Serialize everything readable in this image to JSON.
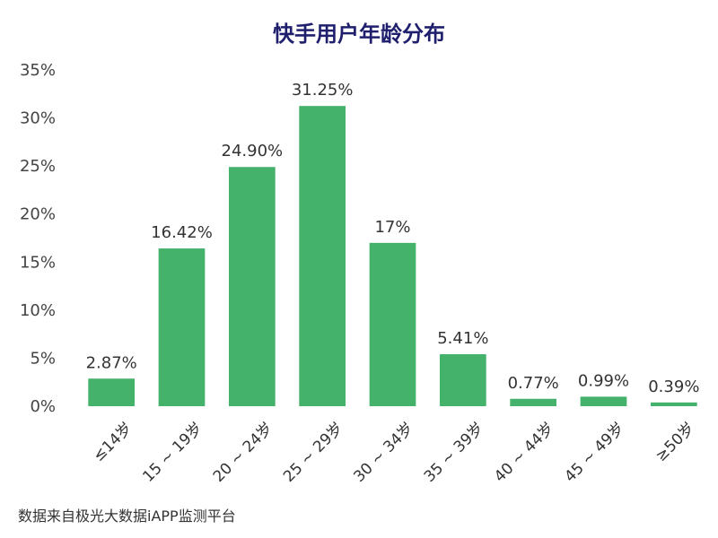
{
  "chart_data": {
    "type": "bar",
    "title": "快手用户年龄分布",
    "categories": [
      "≤14岁",
      "15 ~ 19岁",
      "20 ~ 24岁",
      "25 ~ 29岁",
      "30 ~ 34岁",
      "35 ~ 39岁",
      "40 ~ 44岁",
      "45 ~ 49岁",
      "≥50岁"
    ],
    "values": [
      2.87,
      16.42,
      24.9,
      31.25,
      17,
      5.41,
      0.77,
      0.99,
      0.39
    ],
    "data_labels": [
      "2.87%",
      "16.42%",
      "24.90%",
      "31.25%",
      "17%",
      "5.41%",
      "0.77%",
      "0.99%",
      "0.39%"
    ],
    "yticks": [
      "0%",
      "5%",
      "10%",
      "15%",
      "20%",
      "25%",
      "30%",
      "35%"
    ],
    "ylim": [
      0,
      35
    ],
    "grid": false,
    "legend": "none",
    "bar_color": "#45b26b",
    "source": "数据来自极光大数据iAPP监测平台"
  }
}
